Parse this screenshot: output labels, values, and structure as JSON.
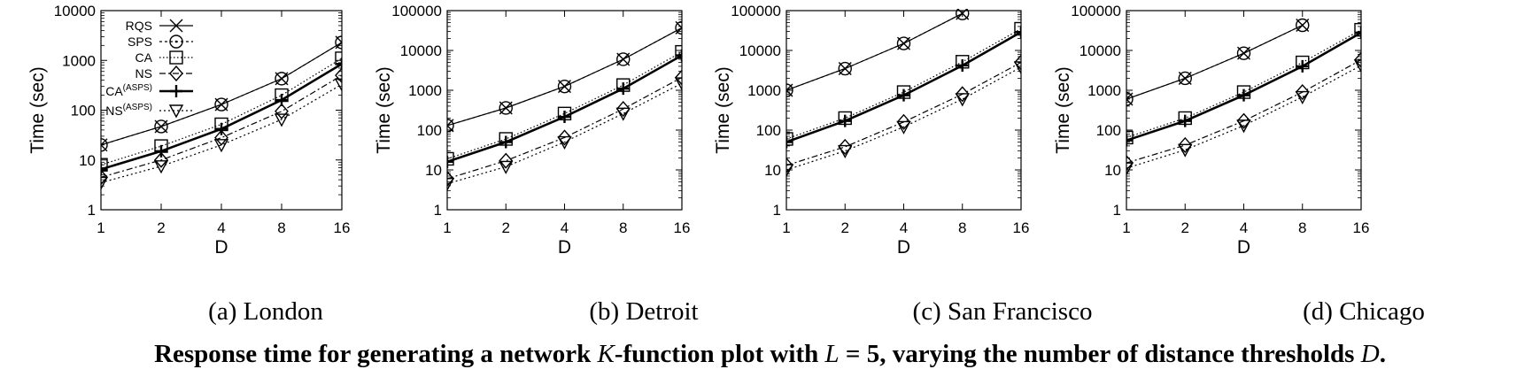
{
  "figure_caption": {
    "prefix": "Response time for generating a network ",
    "k_symbol": "K",
    "middle": "-function plot with ",
    "l_symbol": "L",
    "l_value": " = 5, varying the number of distance thresholds ",
    "d_symbol": "D",
    "suffix": "."
  },
  "legend": [
    {
      "label": "RQS",
      "sup": ""
    },
    {
      "label": "SPS",
      "sup": ""
    },
    {
      "label": "CA",
      "sup": ""
    },
    {
      "label": "NS",
      "sup": ""
    },
    {
      "label": "CA",
      "sup": "(ASPS)"
    },
    {
      "label": "NS",
      "sup": "(ASPS)"
    }
  ],
  "chart_data": [
    {
      "type": "line",
      "caption": "(a) London",
      "xlabel": "D",
      "ylabel": "Time (sec)",
      "yscale": "log",
      "x": [
        1,
        2,
        4,
        8,
        16
      ],
      "x_ticks": [
        "1",
        "2",
        "4",
        "8",
        "16"
      ],
      "ylim": [
        1,
        10000
      ],
      "y_ticks": [
        "1",
        "10",
        "100",
        "1000",
        "10000"
      ],
      "series": [
        {
          "name": "RQS",
          "values": [
            20,
            47,
            130,
            430,
            2300
          ]
        },
        {
          "name": "SPS",
          "values": [
            20,
            47,
            130,
            430,
            2300
          ]
        },
        {
          "name": "CA",
          "values": [
            8,
            19,
            52,
            200,
            1100
          ]
        },
        {
          "name": "NS",
          "values": [
            4.5,
            10,
            28,
            95,
            500
          ]
        },
        {
          "name": "CA(ASPS)",
          "values": [
            6.5,
            15,
            42,
            160,
            850
          ]
        },
        {
          "name": "NS(ASPS)",
          "values": [
            3.5,
            7.5,
            20,
            65,
            330
          ]
        }
      ]
    },
    {
      "type": "line",
      "caption": "(b) Detroit",
      "xlabel": "D",
      "ylabel": "Time (sec)",
      "yscale": "log",
      "x": [
        1,
        2,
        4,
        8,
        16
      ],
      "x_ticks": [
        "1",
        "2",
        "4",
        "8",
        "16"
      ],
      "ylim": [
        1,
        100000
      ],
      "y_ticks": [
        "1",
        "10",
        "100",
        "1000",
        "10000",
        "100000"
      ],
      "series": [
        {
          "name": "RQS",
          "values": [
            130,
            360,
            1250,
            6000,
            37000
          ]
        },
        {
          "name": "SPS",
          "values": [
            130,
            360,
            1250,
            6000,
            37000
          ]
        },
        {
          "name": "CA",
          "values": [
            19,
            60,
            260,
            1350,
            9200
          ]
        },
        {
          "name": "NS",
          "values": [
            6,
            17,
            65,
            340,
            2100
          ]
        },
        {
          "name": "CA(ASPS)",
          "values": [
            16,
            50,
            215,
            1100,
            7500
          ]
        },
        {
          "name": "NS(ASPS)",
          "values": [
            4.5,
            12,
            50,
            260,
            1500
          ]
        }
      ]
    },
    {
      "type": "line",
      "caption": "(c) San Francisco",
      "xlabel": "D",
      "ylabel": "Time (sec)",
      "yscale": "log",
      "x": [
        1,
        2,
        4,
        8,
        16
      ],
      "x_ticks": [
        "1",
        "2",
        "4",
        "8",
        "16"
      ],
      "ylim": [
        1,
        100000
      ],
      "y_ticks": [
        "1",
        "10",
        "100",
        "1000",
        "10000",
        "100000"
      ],
      "series": [
        {
          "name": "RQS",
          "values": [
            1000,
            3500,
            15000,
            85000,
            null
          ]
        },
        {
          "name": "SPS",
          "values": [
            1000,
            3500,
            15000,
            85000,
            null
          ]
        },
        {
          "name": "CA",
          "values": [
            60,
            200,
            900,
            5200,
            35000
          ]
        },
        {
          "name": "NS",
          "values": [
            13,
            38,
            160,
            800,
            5000
          ]
        },
        {
          "name": "CA(ASPS)",
          "values": [
            50,
            170,
            750,
            4200,
            29000
          ]
        },
        {
          "name": "NS(ASPS)",
          "values": [
            10,
            30,
            120,
            600,
            3800
          ]
        }
      ]
    },
    {
      "type": "line",
      "caption": "(d) Chicago",
      "xlabel": "D",
      "ylabel": "Time (sec)",
      "yscale": "log",
      "x": [
        1,
        2,
        4,
        8,
        16
      ],
      "x_ticks": [
        "1",
        "2",
        "4",
        "8",
        "16"
      ],
      "ylim": [
        1,
        100000
      ],
      "y_ticks": [
        "1",
        "10",
        "100",
        "1000",
        "10000",
        "100000"
      ],
      "series": [
        {
          "name": "RQS",
          "values": [
            600,
            2000,
            8500,
            43000,
            null
          ]
        },
        {
          "name": "SPS",
          "values": [
            600,
            2000,
            8500,
            43000,
            null
          ]
        },
        {
          "name": "CA",
          "values": [
            65,
            200,
            900,
            5000,
            33000
          ]
        },
        {
          "name": "NS",
          "values": [
            15,
            42,
            170,
            900,
            5800
          ]
        },
        {
          "name": "CA(ASPS)",
          "values": [
            55,
            170,
            750,
            4000,
            28000
          ]
        },
        {
          "name": "NS(ASPS)",
          "values": [
            11,
            32,
            130,
            680,
            4200
          ]
        }
      ]
    }
  ]
}
